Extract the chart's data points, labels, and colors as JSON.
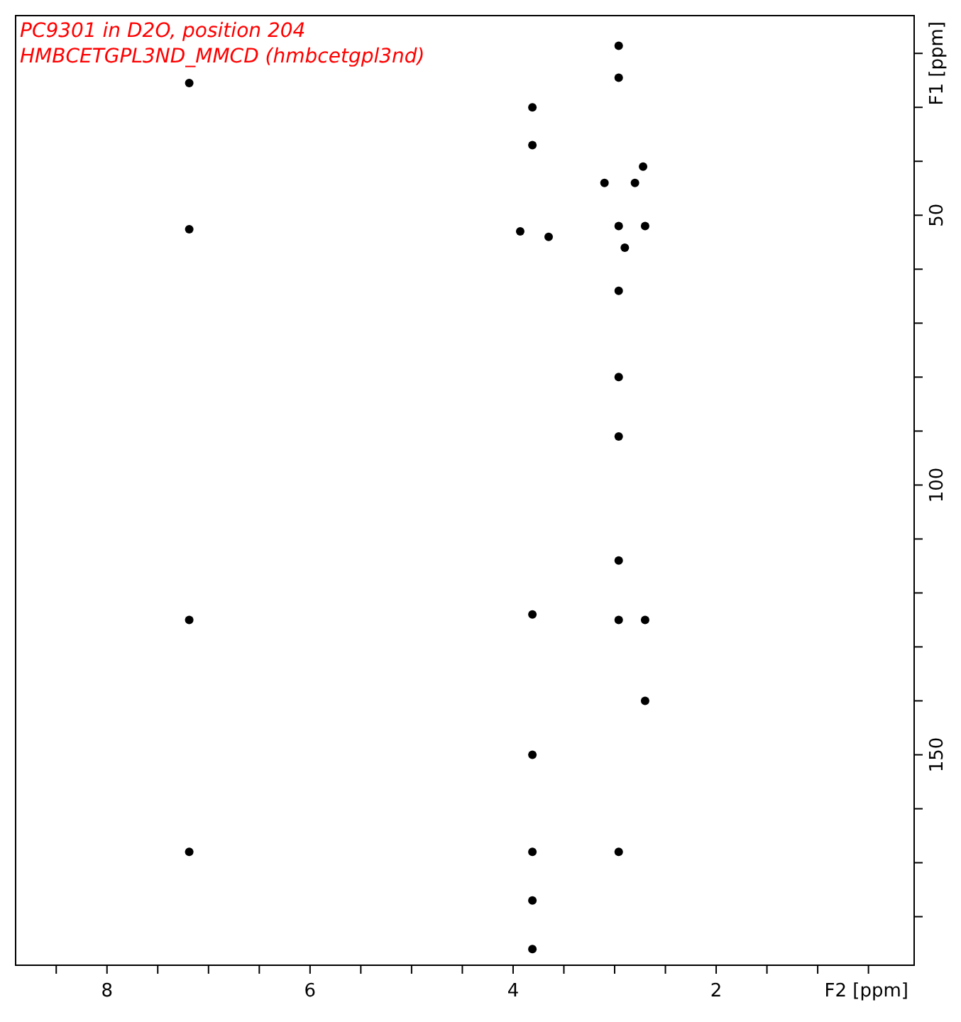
{
  "chart_data": {
    "type": "scatter",
    "title": "PC9301 in D2O, position 204",
    "subtitle": "HMBCETGPL3ND_MMCD (hmbcetgpl3nd)",
    "xlabel": "F2 [ppm]",
    "ylabel": "F1 [ppm]",
    "xlim": [
      8.9,
      0.05
    ],
    "ylim": [
      189,
      13
    ],
    "xticks": [
      {
        "value": 8.5,
        "label": null
      },
      8,
      {
        "value": 7.5,
        "label": null
      },
      {
        "value": 7,
        "label": null
      },
      {
        "value": 6.5,
        "label": null
      },
      6,
      {
        "value": 5.5,
        "label": null
      },
      {
        "value": 5,
        "label": null
      },
      {
        "value": 4.5,
        "label": null
      },
      4,
      {
        "value": 3.5,
        "label": null
      },
      {
        "value": 3,
        "label": null
      },
      {
        "value": 2.5,
        "label": null
      },
      2,
      {
        "value": 1.5,
        "label": null
      },
      {
        "value": 1,
        "label": null
      },
      {
        "value": 0.5,
        "label": null
      }
    ],
    "yticks": [
      {
        "value": 20,
        "label": null
      },
      {
        "value": 30,
        "label": null
      },
      {
        "value": 40,
        "label": null
      },
      50,
      {
        "value": 60,
        "label": null
      },
      {
        "value": 70,
        "label": null
      },
      {
        "value": 80,
        "label": null
      },
      {
        "value": 90,
        "label": null
      },
      100,
      {
        "value": 110,
        "label": null
      },
      {
        "value": 120,
        "label": null
      },
      {
        "value": 130,
        "label": null
      },
      {
        "value": 140,
        "label": null
      },
      150,
      {
        "value": 160,
        "label": null
      },
      {
        "value": 170,
        "label": null
      },
      {
        "value": 180,
        "label": null
      }
    ],
    "grid": false,
    "marker": "circle",
    "series": [
      {
        "color": "#000000",
        "x": [
          7.19,
          7.19,
          7.19,
          7.19,
          3.81,
          3.81,
          3.93,
          3.65,
          2.96,
          2.96,
          3.1,
          2.8,
          2.72,
          2.96,
          2.7,
          2.9,
          2.96,
          2.96,
          2.96,
          2.96,
          3.81,
          2.96,
          2.7,
          2.7,
          3.81,
          3.81,
          3.81,
          3.81,
          2.96
        ],
        "values": [
          25.5,
          52.6,
          125,
          168,
          30,
          37,
          53,
          54,
          18.6,
          24.5,
          44,
          44,
          41,
          52,
          52,
          56,
          64,
          80,
          91,
          114,
          124,
          125,
          125,
          140,
          150,
          168,
          177,
          186,
          168
        ]
      }
    ]
  }
}
